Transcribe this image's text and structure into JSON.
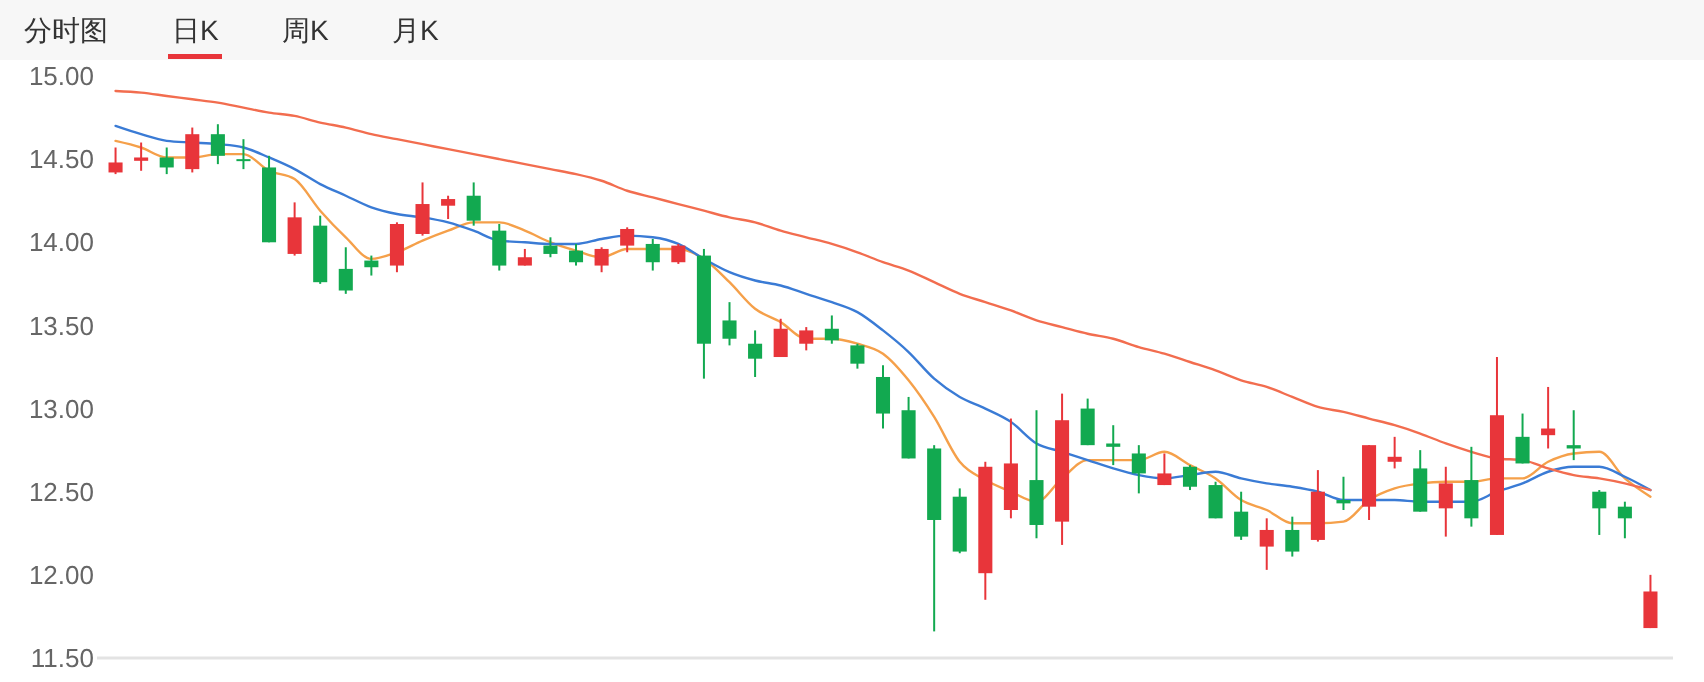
{
  "chart_data": {
    "type": "candlestick",
    "annotations": [
      "分时图",
      "日K",
      "周K",
      "月K"
    ],
    "categories": [
      null,
      null,
      null,
      null,
      null,
      null,
      null,
      null,
      null,
      null,
      null,
      null,
      null,
      null,
      null,
      null,
      null,
      null,
      null,
      null,
      null,
      null,
      null,
      null,
      null,
      null,
      null,
      null,
      null,
      null,
      null,
      null,
      null,
      null,
      null,
      null,
      null,
      null,
      null,
      null,
      null,
      null,
      null,
      null,
      null,
      null,
      null,
      null,
      null,
      null,
      null,
      null,
      null,
      null,
      null,
      null,
      null,
      null,
      null,
      null,
      null
    ],
    "ohlc": [
      [
        14.42,
        14.57,
        14.41,
        14.48
      ],
      [
        14.49,
        14.6,
        14.43,
        14.51
      ],
      [
        14.51,
        14.57,
        14.41,
        14.45
      ],
      [
        14.44,
        14.69,
        14.42,
        14.65
      ],
      [
        14.65,
        14.71,
        14.47,
        14.52
      ],
      [
        14.5,
        14.62,
        14.44,
        14.49
      ],
      [
        14.45,
        14.52,
        14.0,
        14.0
      ],
      [
        13.93,
        14.24,
        13.92,
        14.15
      ],
      [
        14.1,
        14.16,
        13.75,
        13.76
      ],
      [
        13.84,
        13.97,
        13.69,
        13.71
      ],
      [
        13.89,
        13.92,
        13.8,
        13.85
      ],
      [
        13.86,
        14.12,
        13.82,
        14.11
      ],
      [
        14.05,
        14.36,
        14.04,
        14.23
      ],
      [
        14.22,
        14.28,
        14.14,
        14.26
      ],
      [
        14.28,
        14.36,
        14.1,
        14.13
      ],
      [
        14.07,
        14.11,
        13.83,
        13.86
      ],
      [
        13.86,
        13.96,
        13.86,
        13.91
      ],
      [
        13.98,
        14.03,
        13.91,
        13.93
      ],
      [
        13.95,
        13.99,
        13.86,
        13.88
      ],
      [
        13.86,
        13.97,
        13.82,
        13.96
      ],
      [
        13.98,
        14.09,
        13.94,
        14.08
      ],
      [
        13.99,
        14.02,
        13.83,
        13.88
      ],
      [
        13.88,
        13.99,
        13.87,
        13.98
      ],
      [
        13.92,
        13.96,
        13.18,
        13.39
      ],
      [
        13.53,
        13.64,
        13.38,
        13.42
      ],
      [
        13.39,
        13.47,
        13.19,
        13.3
      ],
      [
        13.31,
        13.54,
        13.31,
        13.48
      ],
      [
        13.39,
        13.49,
        13.35,
        13.47
      ],
      [
        13.48,
        13.56,
        13.39,
        13.41
      ],
      [
        13.38,
        13.39,
        13.24,
        13.27
      ],
      [
        13.19,
        13.26,
        12.88,
        12.97
      ],
      [
        12.99,
        13.07,
        12.7,
        12.7
      ],
      [
        12.76,
        12.78,
        11.66,
        12.33
      ],
      [
        12.47,
        12.52,
        12.13,
        12.14
      ],
      [
        12.01,
        12.68,
        11.85,
        12.65
      ],
      [
        12.39,
        12.94,
        12.34,
        12.67
      ],
      [
        12.57,
        12.99,
        12.22,
        12.3
      ],
      [
        12.32,
        13.09,
        12.18,
        12.93
      ],
      [
        13.0,
        13.06,
        12.78,
        12.78
      ],
      [
        12.79,
        12.9,
        12.66,
        12.77
      ],
      [
        12.73,
        12.78,
        12.49,
        12.61
      ],
      [
        12.54,
        12.73,
        12.54,
        12.61
      ],
      [
        12.65,
        12.66,
        12.51,
        12.53
      ],
      [
        12.54,
        12.56,
        12.34,
        12.34
      ],
      [
        12.38,
        12.5,
        12.21,
        12.23
      ],
      [
        12.17,
        12.34,
        12.03,
        12.27
      ],
      [
        12.27,
        12.35,
        12.11,
        12.14
      ],
      [
        12.21,
        12.63,
        12.2,
        12.5
      ],
      [
        12.45,
        12.59,
        12.39,
        12.43
      ],
      [
        12.41,
        12.78,
        12.33,
        12.78
      ],
      [
        12.68,
        12.83,
        12.64,
        12.71
      ],
      [
        12.64,
        12.75,
        12.38,
        12.38
      ],
      [
        12.4,
        12.65,
        12.23,
        12.55
      ],
      [
        12.57,
        12.77,
        12.29,
        12.34
      ],
      [
        12.24,
        13.31,
        12.24,
        12.96
      ],
      [
        12.83,
        12.97,
        12.67,
        12.67
      ],
      [
        12.84,
        13.13,
        12.76,
        12.88
      ],
      [
        12.78,
        12.99,
        12.69,
        12.76
      ],
      [
        12.5,
        12.51,
        12.24,
        12.4
      ],
      [
        12.41,
        12.44,
        12.22,
        12.34
      ],
      [
        11.68,
        12.0,
        11.68,
        11.9
      ]
    ],
    "colors": [
      "#e8353a",
      "#e8353a",
      "#12a950",
      "#e8353a",
      "#12a950",
      "#12a950",
      "#12a950",
      "#e8353a",
      "#12a950",
      "#12a950",
      "#12a950",
      "#e8353a",
      "#e8353a",
      "#e8353a",
      "#12a950",
      "#12a950",
      "#e8353a",
      "#12a950",
      "#12a950",
      "#e8353a",
      "#e8353a",
      "#12a950",
      "#e8353a",
      "#12a950",
      "#12a950",
      "#12a950",
      "#e8353a",
      "#e8353a",
      "#12a950",
      "#12a950",
      "#12a950",
      "#12a950",
      "#12a950",
      "#12a950",
      "#e8353a",
      "#e8353a",
      "#12a950",
      "#e8353a",
      "#12a950",
      "#12a950",
      "#12a950",
      "#e8353a",
      "#12a950",
      "#12a950",
      "#12a950",
      "#e8353a",
      "#12a950",
      "#e8353a",
      "#12a950",
      "#e8353a",
      "#e8353a",
      "#12a950",
      "#e8353a",
      "#12a950",
      "#e8353a",
      "#12a950",
      "#e8353a",
      "#12a950",
      "#12a950",
      "#12a950",
      "#e8353a"
    ],
    "series": [
      {
        "type": "line",
        "color": "#f5a04a",
        "values": [
          14.61,
          14.57,
          14.51,
          14.51,
          14.53,
          14.53,
          14.43,
          14.38,
          14.19,
          14.03,
          13.9,
          13.94,
          14.01,
          14.07,
          14.12,
          14.12,
          14.07,
          14.0,
          13.95,
          13.91,
          13.96,
          13.96,
          13.96,
          13.9,
          13.76,
          13.6,
          13.52,
          13.42,
          13.42,
          13.39,
          13.33,
          13.17,
          12.95,
          12.68,
          12.57,
          12.5,
          12.44,
          12.58,
          12.69,
          12.69,
          12.69,
          12.74,
          12.66,
          12.58,
          12.45,
          12.39,
          12.31,
          12.31,
          12.32,
          12.45,
          12.52,
          12.55,
          12.56,
          12.56,
          12.58,
          12.58,
          12.68,
          12.73,
          12.74,
          12.58,
          12.47
        ]
      },
      {
        "type": "line",
        "color": "#3a7bd5",
        "values": [
          14.7,
          14.65,
          14.61,
          14.6,
          14.59,
          14.57,
          14.51,
          14.44,
          14.35,
          14.28,
          14.21,
          14.17,
          14.15,
          14.12,
          14.07,
          14.01,
          14.0,
          13.99,
          13.99,
          14.02,
          14.04,
          14.03,
          13.99,
          13.9,
          13.82,
          13.77,
          13.74,
          13.69,
          13.64,
          13.58,
          13.47,
          13.34,
          13.18,
          13.07,
          13.0,
          12.92,
          12.79,
          12.74,
          12.69,
          12.64,
          12.6,
          12.58,
          12.6,
          12.62,
          12.58,
          12.55,
          12.53,
          12.5,
          12.45,
          12.45,
          12.45,
          12.44,
          12.44,
          12.44,
          12.5,
          12.55,
          12.62,
          12.65,
          12.65,
          12.59,
          12.51
        ]
      },
      {
        "type": "line",
        "color": "#f26d4f",
        "values": [
          14.91,
          14.9,
          14.88,
          14.86,
          14.84,
          14.81,
          14.78,
          14.76,
          14.72,
          14.69,
          14.65,
          14.62,
          14.59,
          14.56,
          14.53,
          14.5,
          14.47,
          14.44,
          14.41,
          14.37,
          14.31,
          14.27,
          14.23,
          14.19,
          14.15,
          14.12,
          14.07,
          14.03,
          13.99,
          13.94,
          13.88,
          13.83,
          13.76,
          13.69,
          13.64,
          13.59,
          13.53,
          13.49,
          13.45,
          13.42,
          13.37,
          13.33,
          13.28,
          13.23,
          13.17,
          13.13,
          13.07,
          13.01,
          12.98,
          12.94,
          12.9,
          12.85,
          12.79,
          12.74,
          12.7,
          12.69,
          12.64,
          12.6,
          12.58,
          12.55,
          12.51
        ]
      }
    ],
    "ylim": [
      11.5,
      15.0
    ],
    "yticks": [
      {
        "value": 15,
        "label": "15.00"
      },
      {
        "value": 14.5,
        "label": "14.50"
      },
      {
        "value": 14,
        "label": "14.00"
      },
      {
        "value": 13.5,
        "label": "13.50"
      },
      {
        "value": 13,
        "label": "13.00"
      },
      {
        "value": 12.5,
        "label": "12.50"
      },
      {
        "value": 12,
        "label": "12.00"
      },
      {
        "value": 11.5,
        "label": "11.50"
      }
    ],
    "grid": false
  }
}
